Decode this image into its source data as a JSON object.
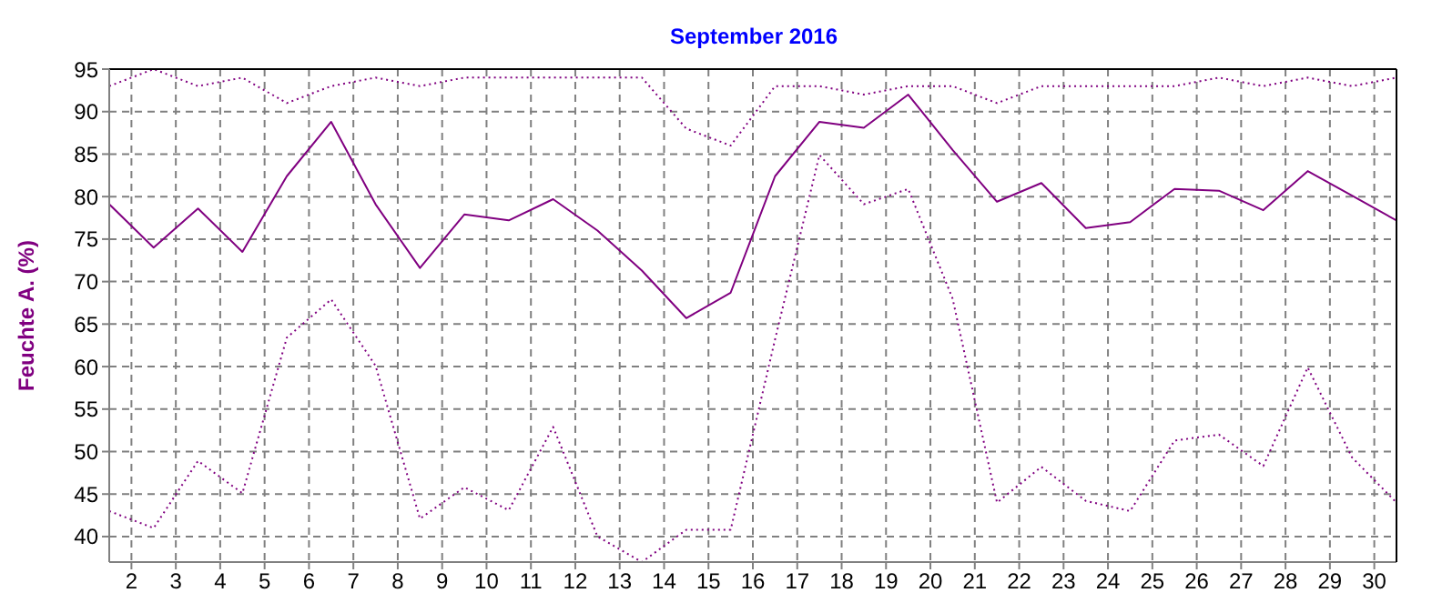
{
  "chart_data": {
    "type": "line",
    "title": "September 2016",
    "ylabel": "Feuchte A.  (%)",
    "x": [
      1.5,
      2.5,
      3.5,
      4.5,
      5.5,
      6.5,
      7.5,
      8.5,
      9.5,
      10.5,
      11.5,
      12.5,
      13.5,
      14.5,
      15.5,
      16.5,
      17.5,
      18.5,
      19.5,
      20.5,
      21.5,
      22.5,
      23.5,
      24.5,
      25.5,
      26.5,
      27.5,
      28.5,
      29.5,
      30.5
    ],
    "series": [
      {
        "color": "#800080",
        "line_style": "dotted",
        "values": [
          93,
          95,
          93,
          94,
          91,
          93,
          94,
          93,
          94,
          94,
          94,
          94,
          94,
          88,
          86,
          93,
          93,
          92,
          93,
          93,
          91,
          93,
          93,
          93,
          93,
          94,
          93,
          94,
          93,
          94
        ]
      },
      {
        "color": "#800080",
        "line_style": "solid",
        "values": [
          79.1,
          74,
          78.6,
          73.5,
          82.4,
          88.8,
          79.1,
          71.6,
          77.9,
          77.2,
          79.7,
          76,
          71.3,
          65.7,
          68.7,
          82.4,
          88.8,
          88.1,
          92,
          85.5,
          79.4,
          81.6,
          76.3,
          77,
          80.9,
          80.7,
          78.4,
          83,
          80.1,
          77.2
        ]
      },
      {
        "color": "#800080",
        "line_style": "dotted",
        "values": [
          43,
          41,
          48.9,
          45.1,
          63.4,
          67.9,
          60.1,
          42.1,
          45.8,
          43.1,
          52.9,
          40,
          37,
          40.8,
          40.8,
          63.2,
          84.9,
          79.1,
          80.9,
          68,
          44,
          48.2,
          44.2,
          43,
          51.3,
          52,
          48.3,
          59.9,
          49.3,
          44
        ]
      }
    ],
    "xlim": [
      1.5,
      30.5
    ],
    "xticks": [
      2,
      3,
      4,
      5,
      6,
      7,
      8,
      9,
      10,
      11,
      12,
      13,
      14,
      15,
      16,
      17,
      18,
      19,
      20,
      21,
      22,
      23,
      24,
      25,
      26,
      27,
      28,
      29,
      30
    ],
    "ylim": [
      37,
      95
    ],
    "yticks": [
      40,
      45,
      50,
      55,
      60,
      65,
      70,
      75,
      80,
      85,
      90,
      95
    ],
    "grid": true,
    "marker": "none"
  }
}
